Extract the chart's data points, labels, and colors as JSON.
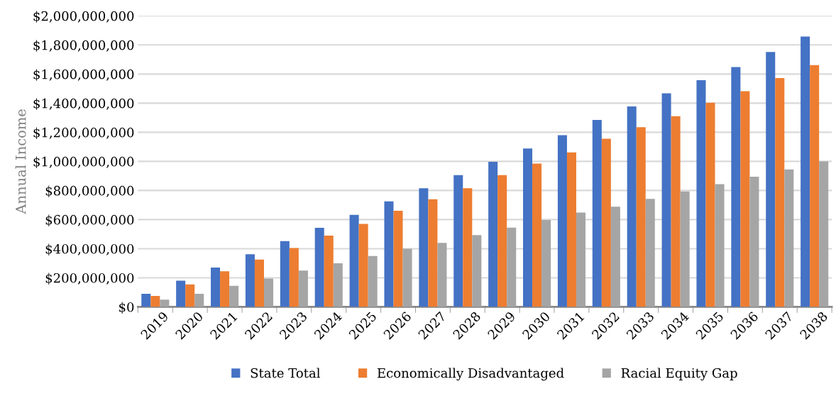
{
  "chart_data": {
    "type": "bar",
    "ylabel": "Annual Income",
    "categories": [
      "2019",
      "2020",
      "2021",
      "2022",
      "2023",
      "2024",
      "2025",
      "2026",
      "2027",
      "2028",
      "2029",
      "2030",
      "2031",
      "2032",
      "2033",
      "2034",
      "2035",
      "2036",
      "2037",
      "2038"
    ],
    "series": [
      {
        "name": "State Total",
        "color": "#4472c4",
        "values": [
          90000000,
          180000000,
          270000000,
          362000000,
          452000000,
          543000000,
          633000000,
          725000000,
          815000000,
          905000000,
          997000000,
          1088000000,
          1180000000,
          1285000000,
          1377000000,
          1468000000,
          1558000000,
          1648000000,
          1752000000,
          1858000000
        ]
      },
      {
        "name": "Economically Disadvantaged",
        "color": "#ed7d31",
        "values": [
          75000000,
          155000000,
          245000000,
          325000000,
          405000000,
          490000000,
          570000000,
          660000000,
          740000000,
          815000000,
          905000000,
          985000000,
          1062000000,
          1155000000,
          1235000000,
          1310000000,
          1403000000,
          1482000000,
          1572000000,
          1662000000
        ]
      },
      {
        "name": "Racial Equity Gap",
        "color": "#a5a5a5",
        "values": [
          50000000,
          90000000,
          145000000,
          195000000,
          250000000,
          300000000,
          350000000,
          400000000,
          440000000,
          493000000,
          545000000,
          597000000,
          648000000,
          688000000,
          742000000,
          793000000,
          843000000,
          895000000,
          945000000,
          1000000000
        ]
      }
    ],
    "ylim": [
      0,
      2000000000
    ],
    "yticks": [
      {
        "value": 0,
        "label": "$0"
      },
      {
        "value": 200000000,
        "label": "$200,000,000"
      },
      {
        "value": 400000000,
        "label": "$400,000,000"
      },
      {
        "value": 600000000,
        "label": "$600,000,000"
      },
      {
        "value": 800000000,
        "label": "$800,000,000"
      },
      {
        "value": 1000000000,
        "label": "$1,000,000,000"
      },
      {
        "value": 1200000000,
        "label": "$1,200,000,000"
      },
      {
        "value": 1400000000,
        "label": "$1,400,000,000"
      },
      {
        "value": 1600000000,
        "label": "$1,600,000,000"
      },
      {
        "value": 1800000000,
        "label": "$1,800,000,000"
      },
      {
        "value": 2000000000,
        "label": "$2,000,000,000"
      }
    ],
    "grid": "y",
    "legend": "bottom"
  }
}
